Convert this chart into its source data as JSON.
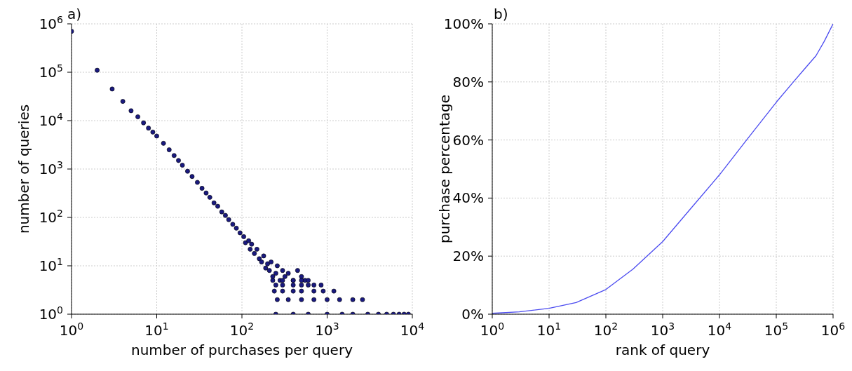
{
  "chart_data": [
    {
      "type": "scatter",
      "title": "a)",
      "xlabel": "number of purchases per query",
      "ylabel": "number of queries",
      "log": "xy",
      "grid": true,
      "marker": "circle",
      "xlim": [
        1,
        10000
      ],
      "xticks": [
        {
          "value": 1,
          "label": "10$^{0}$"
        },
        {
          "value": 10,
          "label": "10$^{1}$"
        },
        {
          "value": 100,
          "label": "10$^{2}$"
        },
        {
          "value": 1000,
          "label": "10$^{3}$"
        },
        {
          "value": 10000,
          "label": "10$^{4}$"
        }
      ],
      "ylim": [
        1,
        1000000
      ],
      "yticks": [
        {
          "value": 1,
          "label": "10$^{0}$"
        },
        {
          "value": 10,
          "label": "10$^{1}$"
        },
        {
          "value": 100,
          "label": "10$^{2}$"
        },
        {
          "value": 1000,
          "label": "10$^{3}$"
        },
        {
          "value": 10000,
          "label": "10$^{4}$"
        },
        {
          "value": 100000,
          "label": "10$^{5}$"
        },
        {
          "value": 1000000,
          "label": "10$^{6}$"
        }
      ],
      "series": [
        {
          "color": "#1a1a80",
          "x": [
            1,
            2,
            3,
            4,
            5,
            6,
            7,
            8,
            9,
            10,
            12,
            14,
            16,
            18,
            20,
            23,
            26,
            30,
            34,
            38,
            42,
            47,
            52,
            58,
            64,
            70,
            78,
            86,
            95,
            105,
            110,
            120,
            125,
            130,
            140,
            150,
            160,
            170,
            180,
            190,
            200,
            210,
            220,
            230,
            250,
            260,
            280,
            300,
            320,
            350,
            400,
            450,
            500,
            550,
            230,
            300,
            400,
            500,
            600,
            250,
            300,
            400,
            500,
            600,
            700,
            850,
            240,
            300,
            400,
            500,
            700,
            900,
            1200,
            260,
            350,
            500,
            700,
            1000,
            1400,
            2000,
            2600,
            250,
            400,
            600,
            1000,
            1500,
            2000,
            3000,
            4000,
            5000,
            6000,
            7000,
            8000,
            9000
          ],
          "values": [
            700000,
            110000,
            45000,
            25000,
            16000,
            12000,
            9000,
            7000,
            5800,
            4800,
            3400,
            2500,
            1900,
            1500,
            1200,
            900,
            700,
            530,
            400,
            320,
            260,
            200,
            170,
            130,
            110,
            90,
            72,
            60,
            48,
            40,
            30,
            33,
            22,
            28,
            18,
            22,
            14,
            12,
            16,
            9,
            11,
            8,
            12,
            6,
            7,
            10,
            5,
            8,
            6,
            7,
            5,
            8,
            6,
            5,
            5,
            5,
            5,
            5,
            5,
            4,
            4,
            4,
            4,
            4,
            4,
            4,
            3,
            3,
            3,
            3,
            3,
            3,
            3,
            2,
            2,
            2,
            2,
            2,
            2,
            2,
            2,
            1,
            1,
            1,
            1,
            1,
            1,
            1,
            1,
            1,
            1,
            1,
            1,
            1
          ]
        }
      ]
    },
    {
      "type": "line",
      "title": "b)",
      "xlabel": "rank of query",
      "ylabel": "purchase percentage",
      "log": "x",
      "grid": true,
      "xlim": [
        1,
        1000000
      ],
      "xticks": [
        {
          "value": 1,
          "label": "10$^{0}$"
        },
        {
          "value": 10,
          "label": "10$^{1}$"
        },
        {
          "value": 100,
          "label": "10$^{2}$"
        },
        {
          "value": 1000,
          "label": "10$^{3}$"
        },
        {
          "value": 10000,
          "label": "10$^{4}$"
        },
        {
          "value": 100000,
          "label": "10$^{5}$"
        },
        {
          "value": 1000000,
          "label": "10$^{6}$"
        }
      ],
      "ylim": [
        0,
        100
      ],
      "yticks": [
        {
          "value": 0,
          "label": "0%"
        },
        {
          "value": 20,
          "label": "20%"
        },
        {
          "value": 40,
          "label": "40%"
        },
        {
          "value": 60,
          "label": "60%"
        },
        {
          "value": 80,
          "label": "80%"
        },
        {
          "value": 100,
          "label": "100%"
        }
      ],
      "series": [
        {
          "color": "#4b4bf0",
          "x": [
            1,
            3,
            10,
            30,
            100,
            300,
            1000,
            3000,
            10000,
            30000,
            100000,
            200000,
            300000,
            500000,
            700000,
            1000000
          ],
          "values": [
            0.3,
            0.8,
            2,
            4,
            8.5,
            15.5,
            25,
            36,
            48,
            60,
            73,
            80,
            84,
            89,
            94,
            100
          ]
        }
      ]
    }
  ]
}
